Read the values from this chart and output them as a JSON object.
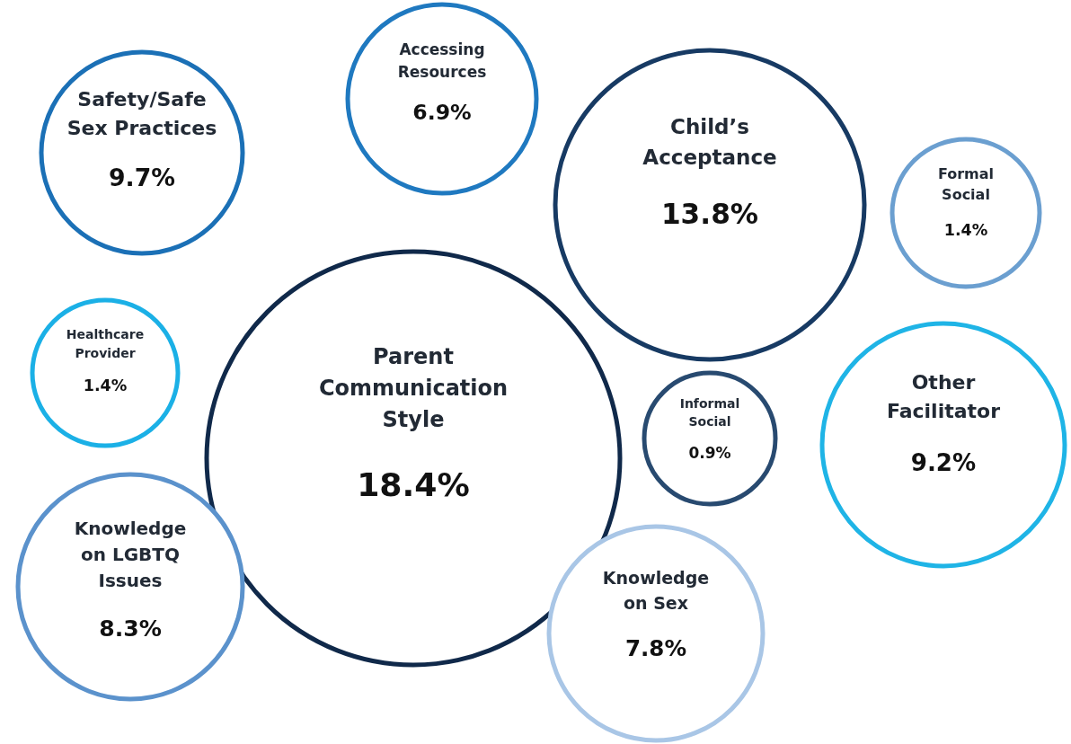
{
  "chart_data": {
    "type": "other",
    "categories": [
      "Safety/Safe Sex Practices",
      "Accessing Resources",
      "Child’s Acceptance",
      "Formal Social",
      "Parent Communication Style",
      "Healthcare Provider",
      "Informal Social",
      "Other Facilitator",
      "Knowledge on LGBTQ Issues",
      "Knowledge on Sex"
    ],
    "values": [
      9.7,
      6.9,
      13.8,
      1.4,
      18.4,
      1.4,
      0.9,
      9.2,
      8.3,
      7.8
    ],
    "value_labels": [
      "9.7%",
      "6.9%",
      "13.8%",
      "1.4%",
      "18.4%",
      "1.4%",
      "0.9%",
      "9.2%",
      "8.3%",
      "7.8%"
    ],
    "colors": [
      "#1b70b6",
      "#1f79c0",
      "#173a63",
      "#6b9fd0",
      "#10294a",
      "#1bb0e6",
      "#284a70",
      "#1fb4e6",
      "#5b92cc",
      "#a9c6e6"
    ]
  }
}
